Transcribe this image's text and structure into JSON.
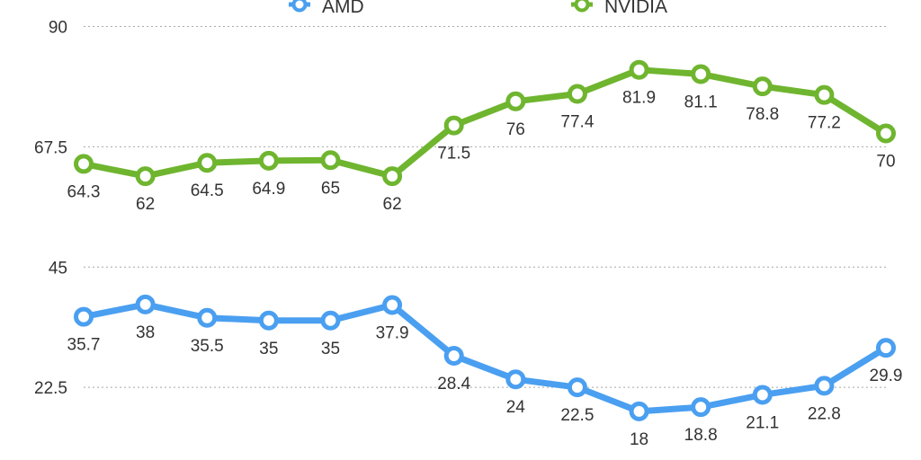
{
  "chart_data": {
    "type": "line",
    "categories": [
      "",
      "",
      "",
      "",
      "",
      "",
      "",
      "",
      "",
      "",
      "",
      "",
      "",
      ""
    ],
    "series": [
      {
        "name": "AMD",
        "color": "#4a9ff0",
        "values": [
          35.7,
          38,
          35.5,
          35,
          35,
          37.9,
          28.4,
          24,
          22.5,
          18,
          18.8,
          21.1,
          22.8,
          29.9
        ]
      },
      {
        "name": "NVIDIA",
        "color": "#6fb52f",
        "values": [
          64.3,
          62,
          64.5,
          64.9,
          65,
          62,
          71.5,
          76,
          77.4,
          81.9,
          81.1,
          78.8,
          77.2,
          70
        ]
      }
    ],
    "yticks": [
      "22.5",
      "45",
      "67.5",
      "90"
    ],
    "ylim": [
      0,
      90
    ],
    "grid": true,
    "legend": "top-center",
    "title": "",
    "xlabel": "",
    "ylabel": ""
  }
}
